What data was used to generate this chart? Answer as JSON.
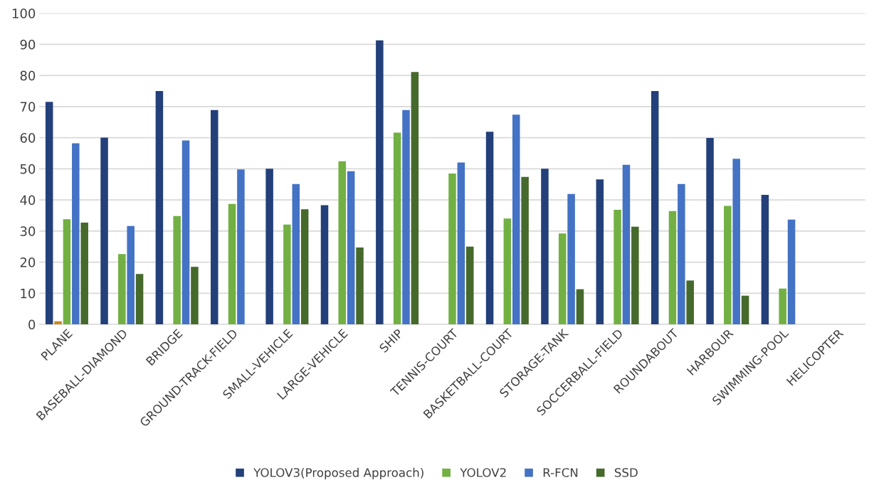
{
  "chart_data": {
    "type": "bar",
    "categories": [
      "PLANE",
      "BASEBALL-DIAMOND",
      "BRIDGE",
      "GROUND-TRACK-FIELD",
      "SMALL-VEHICLE",
      "LARGE-VEHICLE",
      "SHIP",
      "TENNIS-COURT",
      "BASKETBALL-COURT",
      "STORAGE-TANK",
      "SOCCERBALL-FIELD",
      "ROUNDABOUT",
      "HARBOUR",
      "SWIMMING-POOL",
      "HELICOPTER"
    ],
    "series": [
      {
        "name": "YOLOV3(Proposed Approach)",
        "color": "#23407a",
        "values": [
          71.5,
          60,
          75,
          68.9,
          50,
          38.3,
          91.3,
          null,
          61.9,
          50,
          46.6,
          75,
          59.9,
          41.6,
          null
        ]
      },
      {
        "color": "#c5891f",
        "values": [
          1,
          null,
          null,
          null,
          null,
          null,
          null,
          null,
          null,
          null,
          null,
          null,
          null,
          null,
          null
        ]
      },
      {
        "name": "YOLOV2",
        "color": "#72b043",
        "values": [
          33.8,
          22.6,
          34.8,
          38.7,
          32.1,
          52.4,
          61.6,
          48.5,
          34,
          29.2,
          36.8,
          36.4,
          38.1,
          11.5,
          null
        ]
      },
      {
        "name": "R-FCN",
        "color": "#4472c4",
        "values": [
          58.2,
          31.6,
          59.1,
          49.8,
          45.1,
          49.2,
          68.9,
          52,
          67.4,
          41.9,
          51.3,
          45.1,
          53.2,
          33.7,
          null
        ]
      },
      {
        "name": "SSD",
        "color": "#46692c",
        "values": [
          32.7,
          16.2,
          18.5,
          null,
          37,
          24.7,
          81.1,
          25,
          47.4,
          11.3,
          31.4,
          14.1,
          9.2,
          null,
          null
        ]
      }
    ],
    "ylim": [
      0,
      100
    ],
    "yticks": [
      0,
      10,
      20,
      30,
      40,
      50,
      60,
      70,
      80,
      90,
      100
    ],
    "grid": "y",
    "legend": "bottom"
  }
}
